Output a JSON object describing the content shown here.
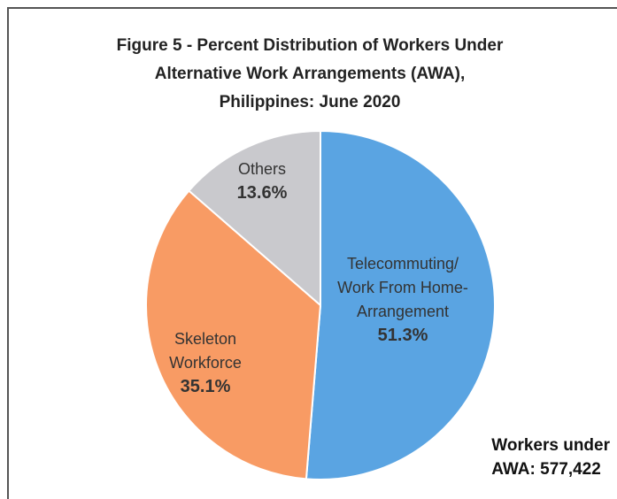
{
  "chart_data": {
    "type": "pie",
    "title": "Figure 5 - Percent Distribution of Workers Under\nAlternative Work Arrangements (AWA),\nPhilippines: June 2020",
    "categories": [
      "Telecommuting/\nWork From Home-\nArrangement",
      "Skeleton\nWorkforce",
      "Others"
    ],
    "values": [
      51.3,
      35.1,
      13.6
    ],
    "value_labels": [
      "51.3%",
      "35.1%",
      "13.6%"
    ],
    "colors": [
      "#5aa4e2",
      "#f89b64",
      "#c9c9cd"
    ],
    "annotation": "Workers under\nAWA: 577,422"
  }
}
